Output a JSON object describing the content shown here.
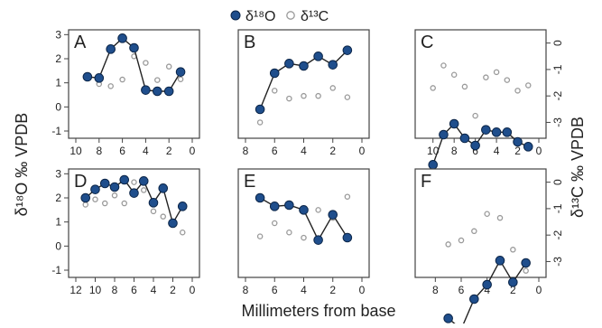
{
  "figure": {
    "legend": {
      "o_label": "δ¹⁸O",
      "c_label": "δ¹³C",
      "placement": "top-center"
    },
    "left_ylabel": "δ¹⁸O ‰ VPDB",
    "right_ylabel": "δ¹³C ‰ VPDB",
    "xlabel": "Millimeters from base",
    "colors": {
      "o_marker": "#1f4e8c",
      "c_marker": "#9a9a9a",
      "line": "#222222"
    }
  },
  "chart_data": [
    {
      "panel": "A",
      "type": "scatter",
      "xlim": [
        10,
        0
      ],
      "xticks": [
        10,
        8,
        6,
        4,
        2,
        0
      ],
      "ylim_o": [
        -1.3,
        3.2
      ],
      "yticks_o": [
        -1,
        0,
        1,
        2,
        3
      ],
      "ylim_c": [
        -3.6,
        0.5
      ],
      "yticks_c": [
        0,
        -1,
        -2,
        -3
      ],
      "series": [
        {
          "name": "δ¹⁸O",
          "x": [
            9,
            8,
            7,
            6,
            5,
            4,
            3,
            2,
            1
          ],
          "y": [
            1.25,
            1.2,
            2.4,
            2.85,
            2.45,
            0.7,
            0.65,
            0.65,
            1.45
          ]
        },
        {
          "name": "δ¹³C",
          "x": [
            8,
            7,
            6,
            5,
            4,
            3,
            2,
            1
          ],
          "y": [
            -1.55,
            -1.63,
            -1.38,
            -0.5,
            -0.75,
            -1.4,
            -0.89,
            -1.37
          ]
        }
      ]
    },
    {
      "panel": "B",
      "type": "scatter",
      "xlim": [
        8,
        0
      ],
      "xticks": [
        8,
        6,
        4,
        2,
        0
      ],
      "ylim_o": [
        -1.3,
        3.2
      ],
      "yticks_o": [
        -1,
        0,
        1,
        2,
        3
      ],
      "ylim_c": [
        -3.6,
        0.5
      ],
      "yticks_c": [
        0,
        -1,
        -2,
        -3
      ],
      "series": [
        {
          "name": "δ¹⁸O",
          "x": [
            7,
            6,
            5,
            4,
            3,
            2,
            1
          ],
          "y": [
            -0.1,
            1.4,
            1.8,
            1.7,
            2.1,
            1.75,
            2.35
          ]
        },
        {
          "name": "δ¹³C",
          "x": [
            7,
            6,
            5,
            4,
            3,
            2,
            1
          ],
          "y": [
            -3.0,
            -1.8,
            -2.1,
            -2.0,
            -2.0,
            -1.7,
            -2.05
          ]
        }
      ]
    },
    {
      "panel": "C",
      "type": "scatter",
      "xlim": [
        11,
        0
      ],
      "xticks": [
        10,
        8,
        6,
        4,
        2,
        0
      ],
      "ylim_o": [
        -1.3,
        3.2
      ],
      "yticks_o": [
        -1,
        0,
        1,
        2,
        3
      ],
      "ylim_c": [
        -3.6,
        0.5
      ],
      "yticks_c": [
        0,
        -1,
        -2,
        -3
      ],
      "series": [
        {
          "name": "δ¹⁸O",
          "x": [
            10,
            9,
            8,
            7,
            6,
            5,
            4,
            3,
            2,
            1
          ],
          "y": [
            -2.4,
            -1.15,
            -0.7,
            -1.3,
            -1.6,
            -0.95,
            -1.05,
            -1.05,
            -1.45,
            -1.65
          ]
        },
        {
          "name": "δ¹³C",
          "x": [
            10,
            9,
            8,
            7,
            6,
            5,
            4,
            3,
            2,
            1
          ],
          "y": [
            -1.7,
            -0.85,
            -1.2,
            -1.65,
            -2.75,
            -1.3,
            -1.1,
            -1.4,
            -1.8,
            -1.6
          ]
        }
      ]
    },
    {
      "panel": "D",
      "type": "scatter",
      "xlim": [
        12,
        0
      ],
      "xticks": [
        12,
        10,
        8,
        6,
        4,
        2,
        0
      ],
      "ylim_o": [
        -1.3,
        3.2
      ],
      "yticks_o": [
        -1,
        0,
        1,
        2,
        3
      ],
      "ylim_c": [
        -3.6,
        0.5
      ],
      "yticks_c": [
        0,
        -1,
        -2,
        -3
      ],
      "series": [
        {
          "name": "δ¹⁸O",
          "x": [
            11,
            10,
            9,
            8,
            7,
            6,
            5,
            4,
            3,
            2,
            1
          ],
          "y": [
            2.0,
            2.35,
            2.6,
            2.45,
            2.75,
            2.2,
            2.7,
            1.8,
            2.4,
            0.95,
            1.65
          ]
        },
        {
          "name": "δ¹³C",
          "x": [
            11,
            10,
            9,
            8,
            7,
            6,
            5,
            4,
            3,
            2,
            1
          ],
          "y": [
            -0.85,
            -0.65,
            -0.8,
            -0.5,
            -0.8,
            0.0,
            -0.3,
            -1.1,
            -1.3,
            -1.55,
            -1.9
          ]
        }
      ]
    },
    {
      "panel": "E",
      "type": "scatter",
      "xlim": [
        8,
        0
      ],
      "xticks": [
        8,
        6,
        4,
        2,
        0
      ],
      "ylim_o": [
        -1.3,
        3.2
      ],
      "yticks_o": [
        -1,
        0,
        1,
        2,
        3
      ],
      "ylim_c": [
        -3.6,
        0.5
      ],
      "yticks_c": [
        0,
        -1,
        -2,
        -3
      ],
      "series": [
        {
          "name": "δ¹⁸O",
          "x": [
            7,
            6,
            5,
            4,
            3,
            2,
            1
          ],
          "y": [
            2.0,
            1.65,
            1.7,
            1.5,
            0.25,
            1.3,
            0.35
          ]
        },
        {
          "name": "δ¹³C",
          "x": [
            7,
            6,
            5,
            4,
            3,
            2,
            1
          ],
          "y": [
            -2.05,
            -1.55,
            -1.9,
            -2.1,
            -1.05,
            -1.35,
            -0.55
          ]
        }
      ]
    },
    {
      "panel": "F",
      "type": "scatter",
      "xlim": [
        9,
        0
      ],
      "xticks": [
        8,
        6,
        4,
        2,
        0
      ],
      "ylim_o": [
        -1.3,
        3.2
      ],
      "yticks_o": [
        -1,
        0,
        1,
        2,
        3
      ],
      "ylim_c": [
        -3.6,
        0.5
      ],
      "yticks_c": [
        0,
        -1,
        -2,
        -3
      ],
      "series": [
        {
          "name": "δ¹⁸O",
          "x": [
            7,
            6,
            5,
            4,
            3,
            2,
            1
          ],
          "y": [
            -3.0,
            -3.45,
            -2.2,
            -1.6,
            -0.6,
            -1.5,
            -0.7
          ]
        },
        {
          "name": "δ¹³C",
          "x": [
            7,
            6,
            5,
            4,
            3,
            2,
            1
          ],
          "y": [
            -2.35,
            -2.2,
            -1.85,
            -1.2,
            -1.35,
            -2.55,
            -3.35
          ]
        }
      ]
    }
  ]
}
